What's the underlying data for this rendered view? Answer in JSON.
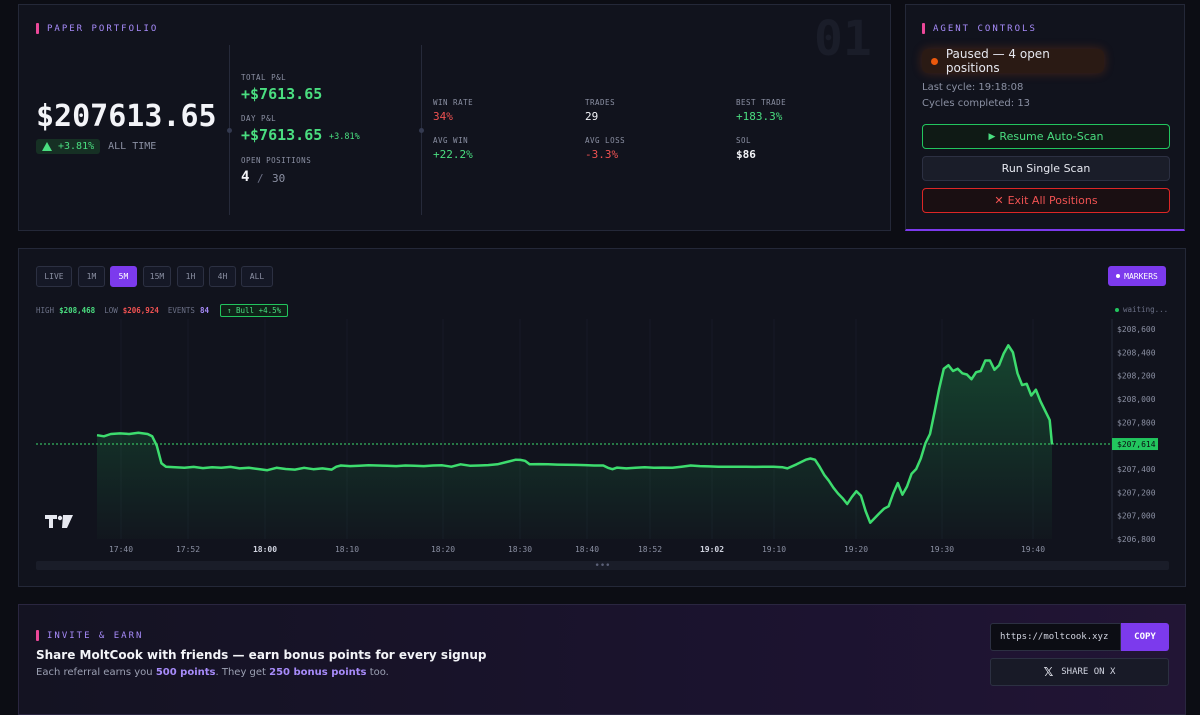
{
  "portfolio": {
    "section_title": "PAPER PORTFOLIO",
    "watermark": "01",
    "total_value": "$207613.65",
    "change_pct": "+3.81%",
    "change_label": "ALL TIME",
    "total_pnl_label": "TOTAL P&L",
    "total_pnl": "+$7613.65",
    "day_pnl_label": "DAY P&L",
    "day_pnl": "+$7613.65",
    "day_pnl_pct": "+3.81%",
    "open_positions_label": "OPEN POSITIONS",
    "open_positions": "4",
    "open_positions_sep": "/",
    "open_positions_max": "30",
    "win_rate_label": "WIN RATE",
    "win_rate": "34%",
    "trades_label": "TRADES",
    "trades": "29",
    "best_trade_label": "BEST TRADE",
    "best_trade": "+183.3%",
    "avg_win_label": "AVG WIN",
    "avg_win": "+22.2%",
    "avg_loss_label": "AVG LOSS",
    "avg_loss": "-3.3%",
    "sol_label": "SOL",
    "sol": "$86"
  },
  "agent": {
    "section_title": "AGENT CONTROLS",
    "status": "Paused — 4 open positions",
    "last_cycle": "Last cycle: 19:18:08",
    "cycles_completed": "Cycles completed: 13",
    "resume_label": "Resume Auto-Scan",
    "single_scan_label": "Run Single Scan",
    "exit_all_label": "Exit All Positions"
  },
  "chart_toolbar": {
    "timeframes": [
      "LIVE",
      "1M",
      "5M",
      "15M",
      "1H",
      "4H",
      "ALL"
    ],
    "active_timeframe": "5M",
    "markers_label": "MARKERS",
    "high_label": "HIGH",
    "high": "$208,468",
    "low_label": "LOW",
    "low": "$206,924",
    "events_label": "EVENTS",
    "events": "84",
    "bull_badge": "Bull +4.5%",
    "waiting": "waiting..."
  },
  "chart_data": {
    "type": "area",
    "x_ticks": [
      "17:40",
      "17:52",
      "18:00",
      "18:10",
      "18:20",
      "18:30",
      "18:40",
      "18:52",
      "19:02",
      "19:10",
      "19:20",
      "19:30",
      "19:40"
    ],
    "y_ticks": [
      "$208,600",
      "$208,400",
      "$208,200",
      "$208,000",
      "$207,800",
      "$207,614",
      "$207,400",
      "$207,200",
      "$207,000",
      "$206,800"
    ],
    "ylim": [
      206800,
      208600
    ],
    "current_value": 207614,
    "current_label": "$207,614",
    "series": [
      {
        "points": [
          [
            0,
            207690
          ],
          [
            3,
            207680
          ],
          [
            6,
            207700
          ],
          [
            10,
            207705
          ],
          [
            14,
            207700
          ],
          [
            18,
            207710
          ],
          [
            22,
            207700
          ],
          [
            24,
            207680
          ],
          [
            26,
            207600
          ],
          [
            28,
            207450
          ],
          [
            30,
            207420
          ],
          [
            34,
            207415
          ],
          [
            38,
            207410
          ],
          [
            42,
            207418
          ],
          [
            46,
            207408
          ],
          [
            50,
            207415
          ],
          [
            54,
            207410
          ],
          [
            58,
            207418
          ],
          [
            62,
            207405
          ],
          [
            66,
            207410
          ],
          [
            70,
            207400
          ],
          [
            74,
            207390
          ],
          [
            78,
            207410
          ],
          [
            82,
            207400
          ],
          [
            86,
            207395
          ],
          [
            90,
            207410
          ],
          [
            94,
            207398
          ],
          [
            98,
            207405
          ],
          [
            102,
            207395
          ],
          [
            104,
            207420
          ],
          [
            106,
            207430
          ],
          [
            110,
            207425
          ],
          [
            114,
            207428
          ],
          [
            118,
            207432
          ],
          [
            122,
            207430
          ],
          [
            126,
            207428
          ],
          [
            130,
            207425
          ],
          [
            134,
            207430
          ],
          [
            138,
            207428
          ],
          [
            142,
            207425
          ],
          [
            146,
            207430
          ],
          [
            150,
            207432
          ],
          [
            154,
            207420
          ],
          [
            158,
            207440
          ],
          [
            162,
            207428
          ],
          [
            166,
            207430
          ],
          [
            170,
            207433
          ],
          [
            174,
            207440
          ],
          [
            178,
            207460
          ],
          [
            182,
            207480
          ],
          [
            184,
            207478
          ],
          [
            186,
            207470
          ],
          [
            188,
            207440
          ],
          [
            192,
            207442
          ],
          [
            196,
            207440
          ],
          [
            200,
            207438
          ],
          [
            204,
            207436
          ],
          [
            208,
            207435
          ],
          [
            212,
            207433
          ],
          [
            216,
            207430
          ],
          [
            220,
            207430
          ],
          [
            222,
            207410
          ],
          [
            224,
            207398
          ],
          [
            226,
            207412
          ],
          [
            230,
            207405
          ],
          [
            234,
            207410
          ],
          [
            238,
            207415
          ],
          [
            242,
            207410
          ],
          [
            246,
            207412
          ],
          [
            250,
            207410
          ],
          [
            254,
            207420
          ],
          [
            258,
            207430
          ],
          [
            262,
            207425
          ],
          [
            266,
            207422
          ],
          [
            270,
            207420
          ],
          [
            274,
            207420
          ],
          [
            278,
            207420
          ],
          [
            282,
            207420
          ],
          [
            286,
            207418
          ],
          [
            290,
            207420
          ],
          [
            294,
            207420
          ],
          [
            298,
            207415
          ],
          [
            300,
            207405
          ],
          [
            304,
            207440
          ],
          [
            308,
            207480
          ],
          [
            310,
            207490
          ],
          [
            312,
            207480
          ],
          [
            314,
            207420
          ],
          [
            316,
            207350
          ],
          [
            318,
            207300
          ],
          [
            320,
            207240
          ],
          [
            322,
            207190
          ],
          [
            324,
            207150
          ],
          [
            326,
            207100
          ],
          [
            328,
            207160
          ],
          [
            330,
            207210
          ],
          [
            332,
            207170
          ],
          [
            334,
            207040
          ],
          [
            336,
            206940
          ],
          [
            338,
            206980
          ],
          [
            340,
            207020
          ],
          [
            342,
            207060
          ],
          [
            344,
            207080
          ],
          [
            346,
            207190
          ],
          [
            348,
            207280
          ],
          [
            350,
            207180
          ],
          [
            352,
            207250
          ],
          [
            354,
            207360
          ],
          [
            356,
            207400
          ],
          [
            358,
            207490
          ],
          [
            360,
            207620
          ],
          [
            362,
            207700
          ],
          [
            364,
            207890
          ],
          [
            366,
            208090
          ],
          [
            368,
            208260
          ],
          [
            370,
            208290
          ],
          [
            372,
            208240
          ],
          [
            374,
            208260
          ],
          [
            376,
            208220
          ],
          [
            378,
            208210
          ],
          [
            380,
            208170
          ],
          [
            382,
            208230
          ],
          [
            384,
            208240
          ],
          [
            386,
            208330
          ],
          [
            388,
            208330
          ],
          [
            390,
            208250
          ],
          [
            392,
            208290
          ],
          [
            394,
            208390
          ],
          [
            396,
            208460
          ],
          [
            398,
            208400
          ],
          [
            400,
            208220
          ],
          [
            402,
            208120
          ],
          [
            404,
            208130
          ],
          [
            406,
            208030
          ],
          [
            408,
            208080
          ],
          [
            410,
            207980
          ],
          [
            412,
            207900
          ],
          [
            414,
            207820
          ],
          [
            415,
            207610
          ]
        ]
      }
    ]
  },
  "invite": {
    "section_title": "INVITE & EARN",
    "headline": "Share MoltCook with friends — earn bonus points for every signup",
    "sub_pre": "Each referral earns you ",
    "sub_points": "500 points",
    "sub_mid": ". They get ",
    "sub_bonus": "250 bonus points",
    "sub_post": " too.",
    "url": "https://moltcook.xyz",
    "copy_label": "COPY",
    "share_label": "SHARE ON X",
    "share_icon": "x-logo"
  },
  "colors": {
    "accent": "#7c3aed",
    "up": "#4ade80",
    "down": "#f05252",
    "warning": "#ea580c"
  }
}
